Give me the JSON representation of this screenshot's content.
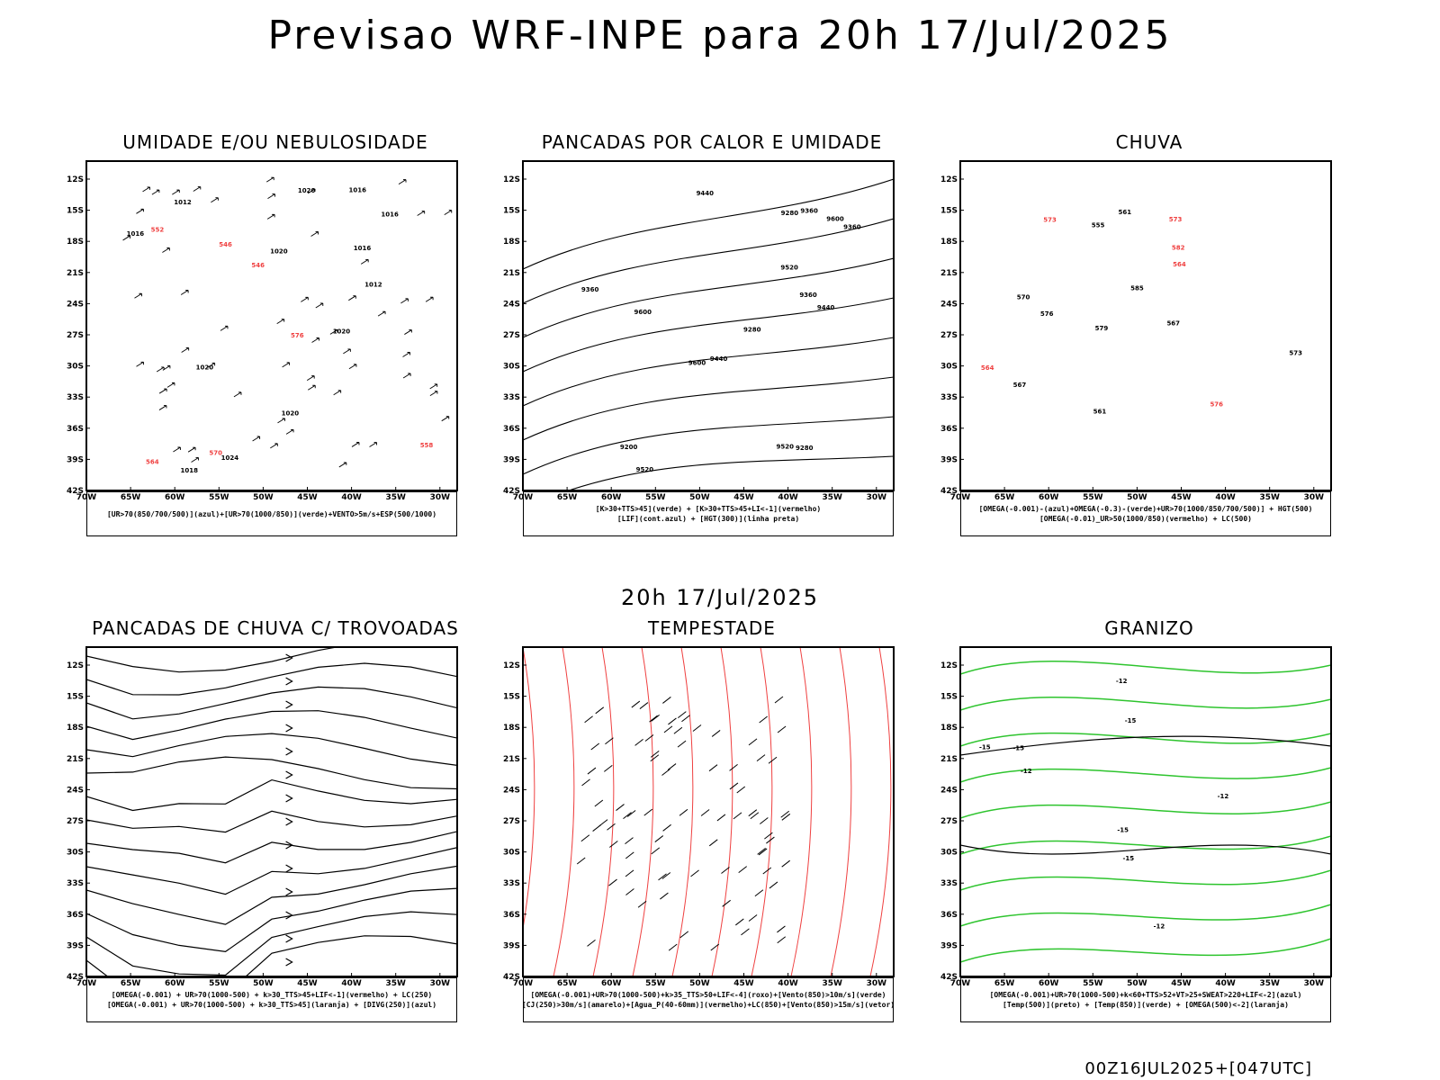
{
  "title": "Previsao WRF-INPE  para 20h 17/Jul/2025",
  "mid_title": "20h 17/Jul/2025",
  "footer": "00Z16JUL2025+[047UTC]",
  "lat_ticks": [
    "12S",
    "15S",
    "18S",
    "21S",
    "24S",
    "27S",
    "30S",
    "33S",
    "36S",
    "39S",
    "42S"
  ],
  "lon_ticks": [
    "70W",
    "65W",
    "60W",
    "55W",
    "50W",
    "45W",
    "40W",
    "35W",
    "30W"
  ],
  "colors": {
    "blue": "#3b3bf5",
    "green": "#2ec42e",
    "red": "#ef4040",
    "darkteal": "#1d4848",
    "yellow": "#e4d82a",
    "orange": "#f08a24",
    "black": "#000000"
  },
  "panels": [
    {
      "title": "UMIDADE E/OU NEBULOSIDADE",
      "legend": [
        "[UR>70(850/700/500)](azul)+[UR>70(1000/850)](verde)+VENTO>5m/s+ESP(500/1000)"
      ],
      "labels": [
        "1016",
        "1018",
        "1020",
        "1024",
        "1016",
        "1020",
        "1016",
        "1020",
        "1016",
        "1012",
        "1012",
        "570",
        "564",
        "558",
        "546",
        "552",
        "546",
        "576",
        "1020",
        "1020"
      ]
    },
    {
      "title": "PANCADAS POR CALOR E UMIDADE",
      "legend": [
        "[K>30+TTS>45](verde) + [K>30+TTS>45+LI<-1](vermelho)",
        "[LIF](cont.azul) + [HGT(300)](linha preta)"
      ],
      "labels": [
        "9520",
        "9600",
        "9440",
        "9600",
        "9360",
        "9520",
        "9600",
        "9440",
        "9520",
        "9360",
        "9280",
        "9440",
        "9200",
        "9360",
        "9280",
        "9360",
        "9280"
      ]
    },
    {
      "title": "CHUVA",
      "legend": [
        "[OMEGA(-0.001)-(azul)+OMEGA(-0.3)-(verde)+UR>70(1000/850/700/500)] + HGT(500)",
        "[OMEGA(-0.01)_UR>50(1000/850)(vermelho) + LC(500)"
      ],
      "labels": [
        "582",
        "579",
        "585",
        "576",
        "573",
        "567",
        "564",
        "561",
        "555",
        "573",
        "570",
        "567",
        "564",
        "561",
        "576",
        "573"
      ]
    },
    {
      "title": "PANCADAS DE CHUVA C/ TROVOADAS",
      "legend": [
        "[OMEGA(-0.001) + UR>70(1000-500) + k>30_TTS>45+LIF<-1](vermelho) + LC(250)",
        "[OMEGA(-0.001) + UR>70(1000-500) + k>30_TTS>45](laranja) + [DIVG(250)](azul)"
      ],
      "labels": []
    },
    {
      "title": "TEMPESTADE",
      "legend": [
        "[OMEGA(-0.001)+UR>70(1000-500)+k>35_TTS>50+LIF<-4](roxo)+[Vento(850)>10m/s](verde)",
        "[CJ(250)>30m/s](amarelo)+[Agua_P(40-60mm)](vermelho)+LC(850)+[Vento(850)>15m/s](vetor)"
      ],
      "labels": []
    },
    {
      "title": "GRANIZO",
      "legend": [
        "[OMEGA(-0.001)+UR>70(1000-500)+k<60+TTS>52+VT>25+SWEAT>220+LIF<-2](azul)",
        "[Temp(500)](preto) + [Temp(850)](verde) + [OMEGA(500)<-2](laranja)"
      ],
      "labels": [
        "-12",
        "-15",
        "-12",
        "-15",
        "-12",
        "-15",
        "-15",
        "-12",
        "-15"
      ]
    }
  ]
}
